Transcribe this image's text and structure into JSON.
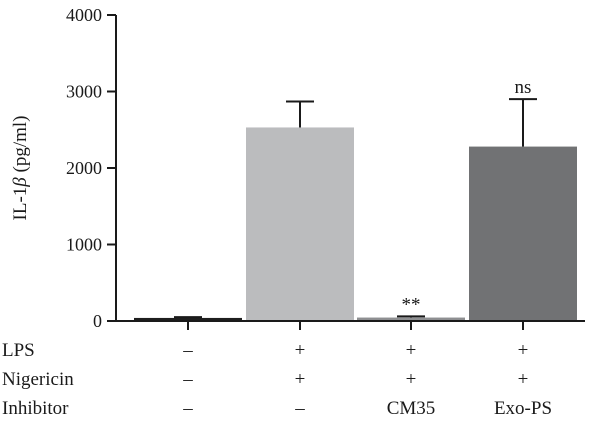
{
  "chart_data": {
    "type": "bar",
    "ylabel_prefix": "IL-1",
    "ylabel_symbol": "β",
    "ylabel_unit": " (pg/ml)",
    "ylim": [
      0,
      4000
    ],
    "yticks": [
      "0",
      "1000",
      "2000",
      "3000",
      "4000"
    ],
    "ytick_values": [
      0,
      1000,
      2000,
      3000,
      4000
    ],
    "grid": false,
    "legend": "none",
    "bars": [
      {
        "value": 40,
        "error": 10,
        "color": "#1e1e1e",
        "annotation": ""
      },
      {
        "value": 2530,
        "error": 340,
        "color": "#bbbcbe",
        "annotation": ""
      },
      {
        "value": 45,
        "error": 15,
        "color": "#8e8f91",
        "annotation": "**"
      },
      {
        "value": 2280,
        "error": 620,
        "color": "#717274",
        "annotation": "ns"
      }
    ],
    "conditions": [
      {
        "label": "LPS",
        "values": [
          "–",
          "+",
          "+",
          "+"
        ]
      },
      {
        "label": "Nigericin",
        "values": [
          "–",
          "+",
          "+",
          "+"
        ]
      },
      {
        "label": "Inhibitor",
        "values": [
          "–",
          "–",
          "CM35",
          "Exo-PS"
        ]
      }
    ]
  }
}
